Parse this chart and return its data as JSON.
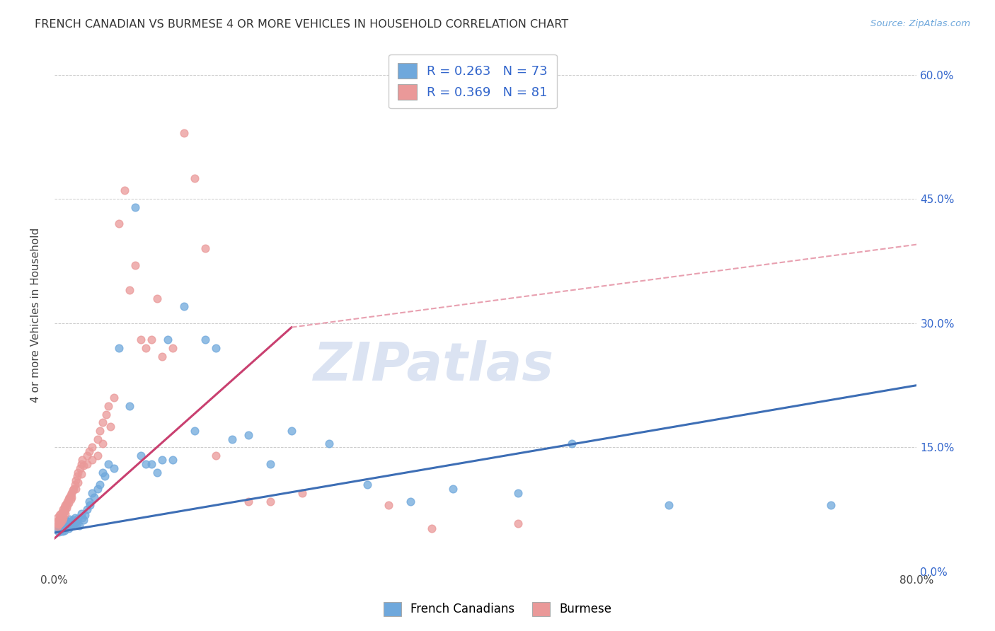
{
  "title": "FRENCH CANADIAN VS BURMESE 4 OR MORE VEHICLES IN HOUSEHOLD CORRELATION CHART",
  "source": "Source: ZipAtlas.com",
  "ylabel": "4 or more Vehicles in Household",
  "xlim": [
    0,
    0.8
  ],
  "ylim": [
    0.0,
    0.62
  ],
  "x_ticks": [
    0.0,
    0.1,
    0.2,
    0.3,
    0.4,
    0.5,
    0.6,
    0.7,
    0.8
  ],
  "y_ticks": [
    0.0,
    0.15,
    0.3,
    0.45,
    0.6
  ],
  "y_tick_labels_right": [
    "0.0%",
    "15.0%",
    "30.0%",
    "45.0%",
    "60.0%"
  ],
  "french_color": "#6fa8dc",
  "burmese_color": "#ea9999",
  "french_line_color": "#3d6eb5",
  "burmese_line_color": "#c94070",
  "burmese_dashed_color": "#e8a0b0",
  "french_R": 0.263,
  "french_N": 73,
  "burmese_R": 0.369,
  "burmese_N": 81,
  "legend_label_french": "French Canadians",
  "legend_label_burmese": "Burmese",
  "watermark": "ZIPatlas",
  "french_scatter": [
    [
      0.002,
      0.055
    ],
    [
      0.003,
      0.052
    ],
    [
      0.004,
      0.048
    ],
    [
      0.005,
      0.058
    ],
    [
      0.005,
      0.054
    ],
    [
      0.006,
      0.051
    ],
    [
      0.007,
      0.056
    ],
    [
      0.007,
      0.049
    ],
    [
      0.008,
      0.06
    ],
    [
      0.008,
      0.053
    ],
    [
      0.009,
      0.058
    ],
    [
      0.009,
      0.05
    ],
    [
      0.01,
      0.062
    ],
    [
      0.01,
      0.057
    ],
    [
      0.01,
      0.053
    ],
    [
      0.011,
      0.059
    ],
    [
      0.011,
      0.054
    ],
    [
      0.012,
      0.061
    ],
    [
      0.012,
      0.056
    ],
    [
      0.013,
      0.058
    ],
    [
      0.013,
      0.052
    ],
    [
      0.014,
      0.063
    ],
    [
      0.015,
      0.06
    ],
    [
      0.015,
      0.055
    ],
    [
      0.016,
      0.058
    ],
    [
      0.017,
      0.062
    ],
    [
      0.018,
      0.057
    ],
    [
      0.019,
      0.065
    ],
    [
      0.02,
      0.06
    ],
    [
      0.021,
      0.058
    ],
    [
      0.022,
      0.064
    ],
    [
      0.023,
      0.056
    ],
    [
      0.025,
      0.07
    ],
    [
      0.026,
      0.065
    ],
    [
      0.027,
      0.062
    ],
    [
      0.028,
      0.068
    ],
    [
      0.03,
      0.075
    ],
    [
      0.032,
      0.085
    ],
    [
      0.033,
      0.08
    ],
    [
      0.035,
      0.095
    ],
    [
      0.037,
      0.09
    ],
    [
      0.04,
      0.1
    ],
    [
      0.042,
      0.105
    ],
    [
      0.045,
      0.12
    ],
    [
      0.047,
      0.115
    ],
    [
      0.05,
      0.13
    ],
    [
      0.055,
      0.125
    ],
    [
      0.06,
      0.27
    ],
    [
      0.07,
      0.2
    ],
    [
      0.075,
      0.44
    ],
    [
      0.08,
      0.14
    ],
    [
      0.085,
      0.13
    ],
    [
      0.09,
      0.13
    ],
    [
      0.095,
      0.12
    ],
    [
      0.1,
      0.135
    ],
    [
      0.105,
      0.28
    ],
    [
      0.11,
      0.135
    ],
    [
      0.12,
      0.32
    ],
    [
      0.13,
      0.17
    ],
    [
      0.14,
      0.28
    ],
    [
      0.15,
      0.27
    ],
    [
      0.165,
      0.16
    ],
    [
      0.18,
      0.165
    ],
    [
      0.2,
      0.13
    ],
    [
      0.22,
      0.17
    ],
    [
      0.255,
      0.155
    ],
    [
      0.29,
      0.105
    ],
    [
      0.33,
      0.085
    ],
    [
      0.37,
      0.1
    ],
    [
      0.43,
      0.095
    ],
    [
      0.48,
      0.155
    ],
    [
      0.57,
      0.08
    ],
    [
      0.72,
      0.08
    ]
  ],
  "burmese_scatter": [
    [
      0.001,
      0.06
    ],
    [
      0.002,
      0.058
    ],
    [
      0.003,
      0.065
    ],
    [
      0.003,
      0.055
    ],
    [
      0.004,
      0.062
    ],
    [
      0.004,
      0.057
    ],
    [
      0.005,
      0.068
    ],
    [
      0.005,
      0.063
    ],
    [
      0.005,
      0.058
    ],
    [
      0.006,
      0.07
    ],
    [
      0.006,
      0.065
    ],
    [
      0.006,
      0.06
    ],
    [
      0.007,
      0.072
    ],
    [
      0.007,
      0.067
    ],
    [
      0.007,
      0.062
    ],
    [
      0.008,
      0.075
    ],
    [
      0.008,
      0.07
    ],
    [
      0.008,
      0.065
    ],
    [
      0.009,
      0.078
    ],
    [
      0.009,
      0.073
    ],
    [
      0.01,
      0.08
    ],
    [
      0.01,
      0.075
    ],
    [
      0.01,
      0.07
    ],
    [
      0.011,
      0.082
    ],
    [
      0.011,
      0.077
    ],
    [
      0.012,
      0.085
    ],
    [
      0.012,
      0.08
    ],
    [
      0.013,
      0.088
    ],
    [
      0.013,
      0.083
    ],
    [
      0.014,
      0.09
    ],
    [
      0.015,
      0.092
    ],
    [
      0.015,
      0.087
    ],
    [
      0.016,
      0.095
    ],
    [
      0.016,
      0.09
    ],
    [
      0.017,
      0.098
    ],
    [
      0.018,
      0.1
    ],
    [
      0.019,
      0.105
    ],
    [
      0.02,
      0.11
    ],
    [
      0.02,
      0.1
    ],
    [
      0.021,
      0.115
    ],
    [
      0.022,
      0.12
    ],
    [
      0.022,
      0.108
    ],
    [
      0.024,
      0.125
    ],
    [
      0.025,
      0.13
    ],
    [
      0.025,
      0.118
    ],
    [
      0.026,
      0.135
    ],
    [
      0.027,
      0.128
    ],
    [
      0.03,
      0.14
    ],
    [
      0.03,
      0.13
    ],
    [
      0.032,
      0.145
    ],
    [
      0.035,
      0.15
    ],
    [
      0.035,
      0.135
    ],
    [
      0.04,
      0.16
    ],
    [
      0.04,
      0.14
    ],
    [
      0.042,
      0.17
    ],
    [
      0.045,
      0.18
    ],
    [
      0.045,
      0.155
    ],
    [
      0.048,
      0.19
    ],
    [
      0.05,
      0.2
    ],
    [
      0.052,
      0.175
    ],
    [
      0.055,
      0.21
    ],
    [
      0.06,
      0.42
    ],
    [
      0.065,
      0.46
    ],
    [
      0.07,
      0.34
    ],
    [
      0.075,
      0.37
    ],
    [
      0.08,
      0.28
    ],
    [
      0.085,
      0.27
    ],
    [
      0.09,
      0.28
    ],
    [
      0.095,
      0.33
    ],
    [
      0.1,
      0.26
    ],
    [
      0.11,
      0.27
    ],
    [
      0.12,
      0.53
    ],
    [
      0.13,
      0.475
    ],
    [
      0.14,
      0.39
    ],
    [
      0.15,
      0.14
    ],
    [
      0.18,
      0.085
    ],
    [
      0.2,
      0.085
    ],
    [
      0.23,
      0.095
    ],
    [
      0.31,
      0.08
    ],
    [
      0.35,
      0.052
    ],
    [
      0.43,
      0.058
    ]
  ],
  "french_line": [
    [
      0.0,
      0.047
    ],
    [
      0.8,
      0.225
    ]
  ],
  "burmese_line_solid": [
    [
      0.0,
      0.04
    ],
    [
      0.22,
      0.295
    ]
  ],
  "burmese_line_dashed": [
    [
      0.22,
      0.295
    ],
    [
      0.8,
      0.395
    ]
  ]
}
